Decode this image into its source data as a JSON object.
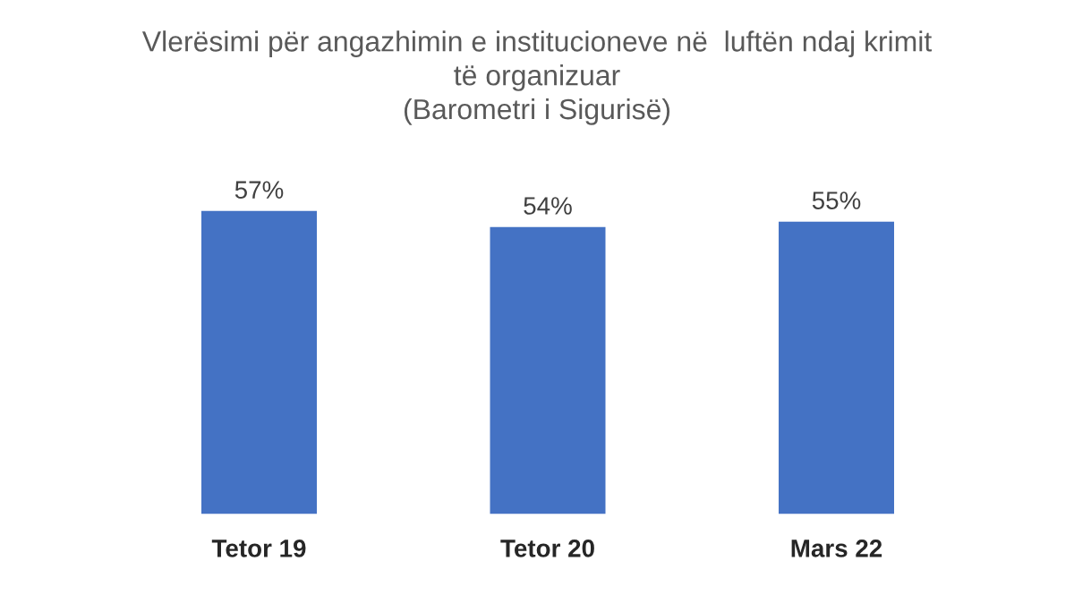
{
  "chart_data": {
    "type": "bar",
    "title": "Vlerësimi për angazhimin e institucioneve në  luftën ndaj krimit\ntë organizuar\n(Barometri i Sigurisë)",
    "categories": [
      "Tetor 19",
      "Tetor 20",
      "Mars 22"
    ],
    "values": [
      57,
      54,
      55
    ],
    "value_labels": [
      "57%",
      "54%",
      "55%"
    ],
    "color": "#4472c4",
    "grid": false,
    "legend": false
  }
}
